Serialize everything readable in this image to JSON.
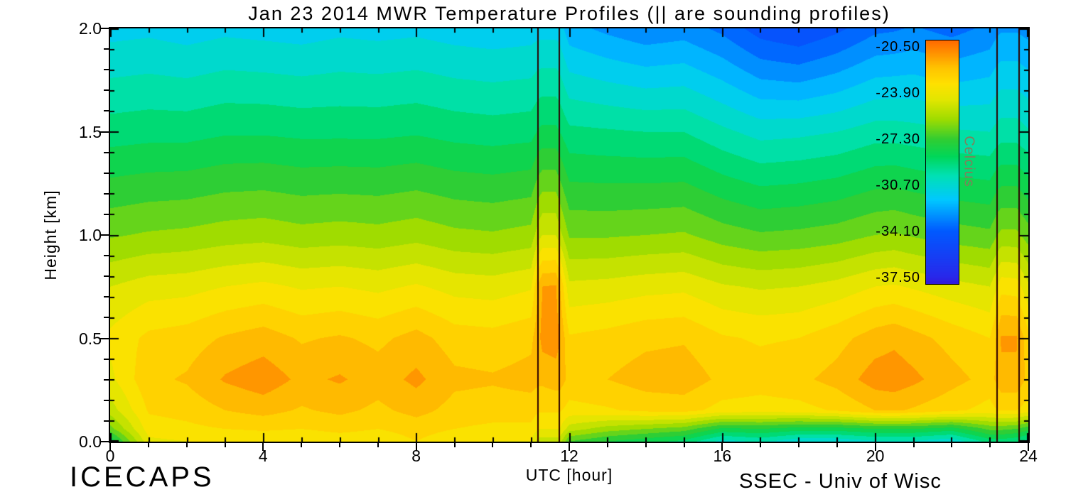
{
  "footer": {
    "left": "ICECAPS",
    "right": "SSEC - Univ of Wisc"
  },
  "chart_data": {
    "type": "heatmap",
    "title": "Jan 23 2014 MWR Temperature Profiles (|| are sounding profiles)",
    "xlabel": "UTC [hour]",
    "ylabel": "Height [km]",
    "units": "Celcius",
    "xlim": [
      0,
      24
    ],
    "ylim": [
      0.0,
      2.0
    ],
    "x_major_ticks": [
      0,
      4,
      8,
      12,
      16,
      20,
      24
    ],
    "x_minor_step_hours": 1,
    "y_major_ticks": [
      0.0,
      0.5,
      1.0,
      1.5,
      2.0
    ],
    "y_minor_step_km": 0.1,
    "band_step_celsius": 0.8,
    "sounding_line_hours": [
      11.2,
      11.75,
      23.2,
      23.78
    ],
    "x_hours": [
      0,
      1,
      2,
      3,
      4,
      5,
      6,
      7,
      8,
      9,
      10,
      11,
      11.2,
      11.3,
      11.65,
      11.75,
      12,
      13,
      14,
      15,
      16,
      17,
      18,
      19,
      20,
      20.5,
      21,
      22,
      23,
      23.2,
      23.3,
      23.7,
      24
    ],
    "heights_km": [
      0.0,
      0.06,
      0.15,
      0.3,
      0.5,
      0.75,
      1.0,
      1.5,
      2.0
    ],
    "values_celsius": [
      [
        -28.5,
        -24.0,
        -23.8,
        -23.6,
        -23.5,
        -23.6,
        -23.4,
        -23.5,
        -23.0,
        -23.5,
        -23.8,
        -23.8,
        -25.0,
        -25.0,
        -25.0,
        -25.0,
        -27.0,
        -27.8,
        -28.3,
        -28.8,
        -30.5,
        -30.0,
        -30.8,
        -30.8,
        -30.3,
        -30.3,
        -30.3,
        -30.8,
        -29.0,
        -29.0,
        -29.0,
        -29.3,
        -29.8
      ],
      [
        -26.5,
        -23.4,
        -23.2,
        -23.0,
        -22.9,
        -23.0,
        -22.8,
        -23.0,
        -22.7,
        -23.0,
        -23.2,
        -23.2,
        -23.8,
        -23.8,
        -23.8,
        -23.8,
        -25.0,
        -25.8,
        -26.2,
        -26.6,
        -28.0,
        -27.8,
        -28.2,
        -28.2,
        -27.8,
        -27.8,
        -27.8,
        -28.2,
        -26.8,
        -26.8,
        -26.8,
        -27.0,
        -27.5
      ],
      [
        -25.0,
        -22.9,
        -22.7,
        -22.2,
        -21.9,
        -22.3,
        -22.0,
        -22.4,
        -21.9,
        -22.5,
        -22.6,
        -22.6,
        -22.9,
        -22.9,
        -22.9,
        -22.9,
        -23.3,
        -23.1,
        -22.8,
        -22.7,
        -23.3,
        -23.4,
        -23.3,
        -22.9,
        -22.2,
        -22.1,
        -22.3,
        -22.8,
        -23.3,
        -23.0,
        -23.0,
        -23.0,
        -23.4
      ],
      [
        -24.0,
        -22.4,
        -22.1,
        -21.3,
        -20.9,
        -21.6,
        -21.3,
        -21.8,
        -21.2,
        -22.0,
        -22.1,
        -21.9,
        -22.0,
        -22.0,
        -21.8,
        -21.8,
        -22.4,
        -22.2,
        -21.8,
        -21.7,
        -22.4,
        -22.6,
        -22.4,
        -21.9,
        -21.0,
        -20.9,
        -21.2,
        -21.9,
        -22.5,
        -22.0,
        -21.6,
        -21.6,
        -22.4
      ],
      [
        -23.6,
        -22.8,
        -22.6,
        -22.1,
        -21.8,
        -22.3,
        -22.1,
        -22.4,
        -21.9,
        -22.6,
        -22.7,
        -22.4,
        -21.6,
        -21.1,
        -21.0,
        -21.4,
        -22.9,
        -22.7,
        -22.4,
        -22.3,
        -22.9,
        -23.1,
        -23.0,
        -22.5,
        -21.8,
        -21.6,
        -21.9,
        -22.5,
        -23.0,
        -22.0,
        -21.3,
        -21.3,
        -22.7
      ],
      [
        -24.6,
        -24.2,
        -24.1,
        -23.8,
        -23.6,
        -23.9,
        -23.8,
        -24.0,
        -23.7,
        -24.1,
        -24.2,
        -23.9,
        -22.0,
        -21.4,
        -21.3,
        -22.1,
        -24.4,
        -24.3,
        -24.1,
        -24.0,
        -24.5,
        -24.7,
        -24.6,
        -24.3,
        -23.8,
        -23.7,
        -23.9,
        -24.3,
        -24.6,
        -23.8,
        -23.3,
        -23.4,
        -24.4
      ],
      [
        -26.3,
        -26.1,
        -26.0,
        -25.8,
        -25.7,
        -25.9,
        -25.8,
        -25.9,
        -25.7,
        -26.0,
        -26.1,
        -25.9,
        -24.9,
        -24.6,
        -24.6,
        -25.1,
        -26.3,
        -26.3,
        -26.2,
        -26.1,
        -26.6,
        -26.9,
        -26.8,
        -26.6,
        -26.2,
        -26.1,
        -26.3,
        -26.6,
        -26.8,
        -26.2,
        -26.0,
        -26.0,
        -26.6
      ],
      [
        -29.0,
        -28.9,
        -28.9,
        -28.7,
        -28.7,
        -28.8,
        -28.8,
        -28.8,
        -28.7,
        -28.9,
        -29.0,
        -28.9,
        -28.5,
        -28.4,
        -28.4,
        -28.6,
        -29.2,
        -29.3,
        -29.4,
        -29.4,
        -30.0,
        -30.5,
        -30.4,
        -30.2,
        -29.8,
        -29.8,
        -29.9,
        -30.1,
        -30.2,
        -29.9,
        -29.8,
        -29.8,
        -30.1
      ],
      [
        -31.3,
        -31.2,
        -31.4,
        -31.2,
        -31.3,
        -31.4,
        -31.2,
        -31.3,
        -31.2,
        -31.4,
        -31.5,
        -31.4,
        -31.3,
        -31.3,
        -31.3,
        -31.4,
        -32.3,
        -32.8,
        -33.2,
        -33.0,
        -33.6,
        -34.6,
        -35.0,
        -34.4,
        -33.6,
        -33.5,
        -33.3,
        -33.7,
        -33.2,
        -32.8,
        -32.7,
        -32.7,
        -32.9
      ]
    ],
    "colorbar": {
      "label": "Celcius",
      "tick_labels": [
        "-20.50",
        "-23.90",
        "-27.30",
        "-30.70",
        "-34.10",
        "-37.50"
      ],
      "top_value": -20.0,
      "bottom_value": -38.0,
      "label_color": "#80805a"
    },
    "colormap_stops": [
      [
        -39.0,
        70,
        0,
        190
      ],
      [
        -37.5,
        40,
        40,
        235
      ],
      [
        -34.1,
        0,
        90,
        255
      ],
      [
        -31.8,
        0,
        200,
        255
      ],
      [
        -30.0,
        0,
        225,
        180
      ],
      [
        -28.6,
        0,
        215,
        90
      ],
      [
        -27.3,
        50,
        205,
        50
      ],
      [
        -25.8,
        160,
        220,
        0
      ],
      [
        -24.4,
        225,
        230,
        0
      ],
      [
        -23.2,
        255,
        225,
        0
      ],
      [
        -22.0,
        255,
        195,
        0
      ],
      [
        -21.0,
        255,
        150,
        0
      ],
      [
        -20.2,
        255,
        115,
        0
      ],
      [
        -19.0,
        248,
        60,
        0
      ]
    ],
    "sounding_line_color": "#2b0000"
  }
}
